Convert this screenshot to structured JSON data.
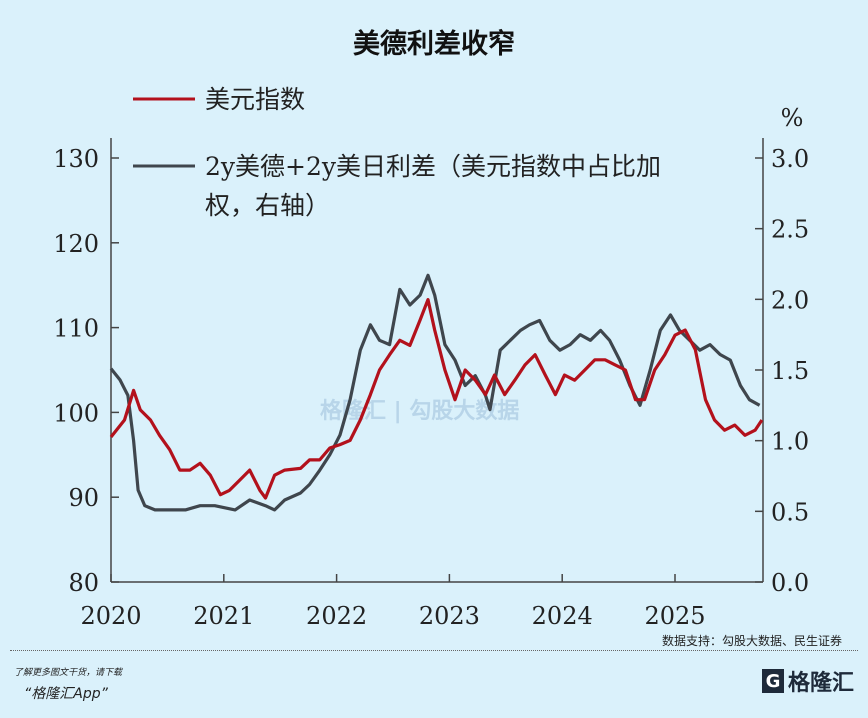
{
  "chart_data": {
    "type": "line",
    "title": "美德利差收窄",
    "right_axis_unit": "%",
    "x_ticks": [
      "2020",
      "2021",
      "2022",
      "2023",
      "2024",
      "2025"
    ],
    "xlim": [
      2020.0,
      2025.78
    ],
    "y_left": {
      "lim": [
        80,
        130
      ],
      "ticks": [
        "80",
        "90",
        "100",
        "110",
        "120",
        "130"
      ]
    },
    "y_right": {
      "lim": [
        0.0,
        3.0
      ],
      "ticks": [
        "0.0",
        "0.5",
        "1.0",
        "1.5",
        "2.0",
        "2.5",
        "3.0"
      ]
    },
    "grid": false,
    "legend": "top-left",
    "series": [
      {
        "name": "美元指数",
        "axis": "left",
        "color": "#b3111c",
        "x": [
          2020.0,
          2020.12,
          2020.2,
          2020.26,
          2020.35,
          2020.43,
          2020.52,
          2020.61,
          2020.7,
          2020.79,
          2020.88,
          2020.97,
          2021.05,
          2021.14,
          2021.23,
          2021.32,
          2021.37,
          2021.45,
          2021.54,
          2021.68,
          2021.76,
          2021.85,
          2021.94,
          2022.03,
          2022.12,
          2022.21,
          2022.3,
          2022.38,
          2022.47,
          2022.56,
          2022.65,
          2022.74,
          2022.81,
          2022.87,
          2022.96,
          2023.05,
          2023.14,
          2023.23,
          2023.32,
          2023.4,
          2023.49,
          2023.58,
          2023.67,
          2023.76,
          2023.85,
          2023.94,
          2024.02,
          2024.11,
          2024.2,
          2024.29,
          2024.38,
          2024.47,
          2024.56,
          2024.65,
          2024.73,
          2024.82,
          2024.91,
          2025.0,
          2025.09,
          2025.18,
          2025.27,
          2025.35,
          2025.44,
          2025.53,
          2025.62,
          2025.71,
          2025.77
        ],
        "y": [
          97.1,
          99.1,
          102.6,
          100.3,
          99.1,
          97.3,
          95.6,
          93.2,
          93.2,
          94.0,
          92.6,
          90.3,
          90.8,
          92.0,
          93.2,
          90.8,
          89.9,
          92.6,
          93.2,
          93.4,
          94.4,
          94.4,
          95.8,
          96.2,
          96.7,
          99.1,
          102.1,
          105.0,
          106.8,
          108.5,
          107.9,
          110.9,
          113.3,
          109.7,
          105.0,
          101.5,
          105.0,
          103.8,
          102.1,
          104.4,
          102.1,
          103.8,
          105.6,
          106.8,
          104.4,
          102.1,
          104.4,
          103.8,
          105.0,
          106.2,
          106.2,
          105.6,
          105.0,
          101.5,
          101.5,
          105.0,
          106.8,
          109.1,
          109.7,
          107.4,
          101.5,
          99.1,
          97.9,
          98.5,
          97.3,
          97.9,
          99.1
        ]
      },
      {
        "name": "2y美德+2y美日利差（美元指数中占比加权，右轴）",
        "axis": "right",
        "color": "#3f464d",
        "x": [
          2020.0,
          2020.08,
          2020.15,
          2020.2,
          2020.24,
          2020.3,
          2020.39,
          2020.52,
          2020.66,
          2020.79,
          2020.92,
          2021.1,
          2021.23,
          2021.37,
          2021.45,
          2021.54,
          2021.68,
          2021.76,
          2021.85,
          2021.94,
          2022.03,
          2022.12,
          2022.21,
          2022.3,
          2022.38,
          2022.47,
          2022.56,
          2022.65,
          2022.74,
          2022.81,
          2022.87,
          2022.96,
          2023.05,
          2023.14,
          2023.23,
          2023.32,
          2023.36,
          2023.45,
          2023.54,
          2023.63,
          2023.71,
          2023.8,
          2023.89,
          2023.98,
          2024.07,
          2024.16,
          2024.25,
          2024.34,
          2024.42,
          2024.51,
          2024.6,
          2024.69,
          2024.78,
          2024.87,
          2024.96,
          2025.04,
          2025.13,
          2025.22,
          2025.31,
          2025.4,
          2025.49,
          2025.58,
          2025.66,
          2025.75
        ],
        "y": [
          1.51,
          1.43,
          1.32,
          1.0,
          0.65,
          0.54,
          0.51,
          0.51,
          0.51,
          0.54,
          0.54,
          0.51,
          0.58,
          0.54,
          0.51,
          0.58,
          0.63,
          0.69,
          0.79,
          0.9,
          1.04,
          1.29,
          1.64,
          1.82,
          1.71,
          1.68,
          2.07,
          1.96,
          2.03,
          2.17,
          2.03,
          1.68,
          1.57,
          1.39,
          1.46,
          1.32,
          1.22,
          1.64,
          1.71,
          1.78,
          1.82,
          1.85,
          1.71,
          1.64,
          1.68,
          1.75,
          1.71,
          1.78,
          1.71,
          1.57,
          1.39,
          1.25,
          1.5,
          1.78,
          1.89,
          1.78,
          1.71,
          1.64,
          1.68,
          1.61,
          1.57,
          1.39,
          1.29,
          1.25
        ]
      }
    ],
    "legend_entries": [
      "美元指数",
      "2y美德+2y美日利差（美元指数中占比加",
      "权，右轴）"
    ],
    "source": "数据支持：勾股大数据、民生证券"
  },
  "footer": {
    "promo_line1": "了解更多图文干货，请下载",
    "promo_line2": "“格隆汇App”",
    "logo_text": "格隆汇"
  },
  "watermark": "格隆汇 | 勾股大数据"
}
